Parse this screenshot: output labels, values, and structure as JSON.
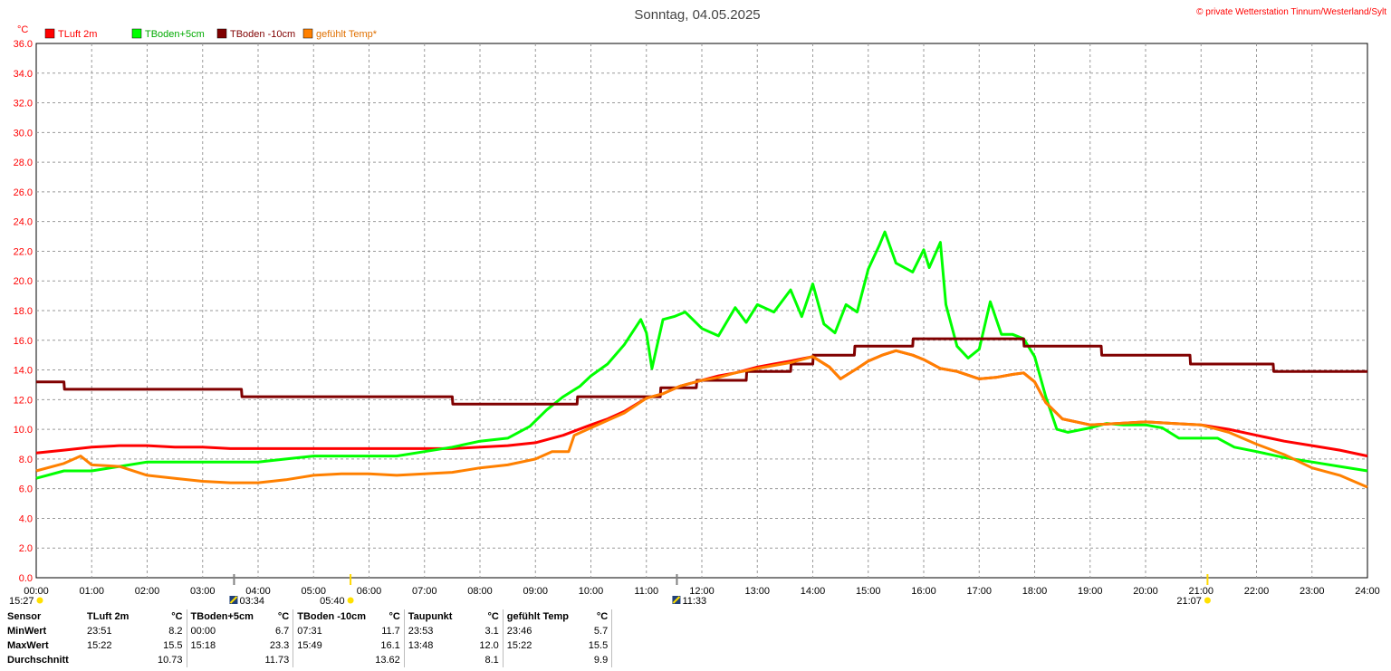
{
  "header": {
    "title": "Sonntag, 04.05.2025",
    "copyright": "© private Wetterstation Tinnum/Westerland/Sylt"
  },
  "chart_data": {
    "type": "line",
    "title": "Sonntag, 04.05.2025",
    "ylabel": "°C",
    "ylim": [
      0,
      36
    ],
    "yticks": [
      "0.0",
      "2.0",
      "4.0",
      "6.0",
      "8.0",
      "10.0",
      "12.0",
      "14.0",
      "16.0",
      "18.0",
      "20.0",
      "22.0",
      "24.0",
      "26.0",
      "28.0",
      "30.0",
      "32.0",
      "34.0",
      "36.0"
    ],
    "xlim": [
      0,
      24
    ],
    "xticks": [
      "00:00",
      "01:00",
      "02:00",
      "03:00",
      "04:00",
      "05:00",
      "06:00",
      "07:00",
      "08:00",
      "09:00",
      "10:00",
      "11:00",
      "12:00",
      "13:00",
      "14:00",
      "15:00",
      "16:00",
      "17:00",
      "18:00",
      "19:00",
      "20:00",
      "21:00",
      "22:00",
      "23:00",
      "24:00"
    ],
    "grid": true,
    "legend_position": "top-left",
    "series": [
      {
        "name": "TLuft 2m",
        "color": "#ff0000",
        "x": [
          0,
          0.5,
          1,
          1.5,
          2,
          2.5,
          3,
          3.5,
          4,
          4.5,
          5,
          5.5,
          6,
          6.5,
          7,
          7.5,
          8,
          8.5,
          9,
          9.5,
          10,
          10.3,
          10.6,
          11,
          11.3,
          11.6,
          12,
          12.3,
          12.6,
          13,
          13.3,
          13.6,
          14,
          14.3,
          14.5,
          14.8,
          15,
          15.25,
          15.5,
          15.8,
          16,
          16.3,
          16.6,
          17,
          17.3,
          17.6,
          17.8,
          18,
          18.2,
          18.5,
          19,
          19.5,
          20,
          20.5,
          21,
          21.5,
          22,
          22.5,
          23,
          23.5,
          24
        ],
        "y": [
          8.4,
          8.6,
          8.8,
          8.9,
          8.9,
          8.8,
          8.8,
          8.7,
          8.7,
          8.7,
          8.7,
          8.7,
          8.7,
          8.7,
          8.7,
          8.7,
          8.8,
          8.9,
          9.1,
          9.6,
          10.3,
          10.7,
          11.2,
          12.1,
          12.4,
          12.9,
          13.3,
          13.6,
          13.8,
          14.2,
          14.4,
          14.6,
          14.9,
          14.2,
          13.4,
          14.1,
          14.6,
          15.0,
          15.3,
          15.0,
          14.7,
          14.1,
          13.9,
          13.4,
          13.5,
          13.7,
          13.8,
          13.2,
          11.8,
          10.7,
          10.3,
          10.4,
          10.5,
          10.4,
          10.3,
          10.0,
          9.6,
          9.2,
          8.9,
          8.6,
          8.2
        ]
      },
      {
        "name": "TBoden+5cm",
        "color": "#00ff00",
        "x": [
          0,
          0.5,
          1,
          1.5,
          2,
          2.5,
          3,
          3.5,
          4,
          4.5,
          5,
          5.5,
          6,
          6.5,
          7,
          7.5,
          8,
          8.5,
          8.9,
          9.2,
          9.5,
          9.8,
          10,
          10.3,
          10.6,
          10.9,
          11,
          11.1,
          11.3,
          11.5,
          11.7,
          12,
          12.3,
          12.6,
          12.8,
          13,
          13.3,
          13.6,
          13.8,
          14,
          14.2,
          14.4,
          14.6,
          14.8,
          15,
          15.2,
          15.3,
          15.5,
          15.8,
          16,
          16.1,
          16.3,
          16.4,
          16.6,
          16.8,
          17,
          17.2,
          17.4,
          17.6,
          17.8,
          18,
          18.2,
          18.4,
          18.6,
          19,
          19.3,
          19.6,
          20,
          20.3,
          20.6,
          21,
          21.3,
          21.6,
          22,
          22.5,
          23,
          23.5,
          24
        ],
        "y": [
          6.7,
          7.2,
          7.2,
          7.5,
          7.8,
          7.8,
          7.8,
          7.8,
          7.8,
          8.0,
          8.2,
          8.2,
          8.2,
          8.2,
          8.5,
          8.8,
          9.2,
          9.4,
          10.2,
          11.3,
          12.2,
          12.9,
          13.6,
          14.4,
          15.7,
          17.4,
          16.5,
          14.1,
          17.4,
          17.6,
          17.9,
          16.8,
          16.3,
          18.2,
          17.2,
          18.4,
          17.9,
          19.4,
          17.6,
          19.8,
          17.1,
          16.5,
          18.4,
          17.9,
          20.8,
          22.4,
          23.3,
          21.2,
          20.6,
          22.1,
          20.9,
          22.6,
          18.4,
          15.6,
          14.8,
          15.4,
          18.6,
          16.4,
          16.4,
          16.1,
          14.9,
          12.2,
          10.0,
          9.8,
          10.1,
          10.4,
          10.3,
          10.3,
          10.1,
          9.4,
          9.4,
          9.4,
          8.8,
          8.5,
          8.1,
          7.8,
          7.5,
          7.2
        ]
      },
      {
        "name": "TBoden -10cm",
        "color": "#800000",
        "x": [
          0,
          0.5,
          0.51,
          3.7,
          3.71,
          7.5,
          7.51,
          9.75,
          9.76,
          11.25,
          11.26,
          11.9,
          11.91,
          12.8,
          12.81,
          13.6,
          13.61,
          14.0,
          14.01,
          14.75,
          14.76,
          15.8,
          15.81,
          17.8,
          17.81,
          19.2,
          19.21,
          20.8,
          20.81,
          22.3,
          22.31,
          24
        ],
        "y": [
          13.2,
          13.2,
          12.7,
          12.7,
          12.2,
          12.2,
          11.7,
          11.7,
          12.2,
          12.2,
          12.8,
          12.8,
          13.3,
          13.3,
          13.9,
          13.9,
          14.4,
          14.4,
          15.0,
          15.0,
          15.6,
          15.6,
          16.1,
          16.1,
          15.6,
          15.6,
          15.0,
          15.0,
          14.4,
          14.4,
          13.9,
          13.9
        ]
      },
      {
        "name": "gefühlt Temp*",
        "color": "#ff8000",
        "x": [
          0,
          0.5,
          0.8,
          1,
          1.5,
          2,
          2.5,
          3,
          3.5,
          4,
          4.5,
          5,
          5.5,
          6,
          6.5,
          7,
          7.5,
          8,
          8.5,
          9,
          9.3,
          9.6,
          9.7,
          10,
          10.3,
          10.6,
          11,
          11.3,
          11.6,
          12,
          12.3,
          12.6,
          13,
          13.3,
          13.6,
          14,
          14.3,
          14.5,
          14.8,
          15,
          15.25,
          15.5,
          15.8,
          16,
          16.3,
          16.6,
          17,
          17.3,
          17.6,
          17.8,
          18,
          18.2,
          18.5,
          19,
          19.5,
          20,
          20.5,
          21,
          21.5,
          22,
          22.5,
          23,
          23.5,
          24
        ],
        "y": [
          7.2,
          7.7,
          8.2,
          7.6,
          7.5,
          6.9,
          6.7,
          6.5,
          6.4,
          6.4,
          6.6,
          6.9,
          7.0,
          7.0,
          6.9,
          7.0,
          7.1,
          7.4,
          7.6,
          8.0,
          8.5,
          8.5,
          9.6,
          10.1,
          10.6,
          11.1,
          12.1,
          12.4,
          12.9,
          13.3,
          13.5,
          13.8,
          14.1,
          14.3,
          14.5,
          14.9,
          14.2,
          13.4,
          14.1,
          14.6,
          15.0,
          15.3,
          15.0,
          14.7,
          14.1,
          13.9,
          13.4,
          13.5,
          13.7,
          13.8,
          13.2,
          11.8,
          10.7,
          10.3,
          10.4,
          10.5,
          10.4,
          10.3,
          9.8,
          9.0,
          8.3,
          7.4,
          6.9,
          6.1
        ]
      }
    ]
  },
  "sun_markers": [
    {
      "label": "15:27",
      "kind": "sun"
    },
    {
      "label": "03:34",
      "kind": "moon"
    },
    {
      "label": "05:40",
      "kind": "sun"
    },
    {
      "label": "11:33",
      "kind": "moon"
    },
    {
      "label": "21:07",
      "kind": "sun"
    }
  ],
  "stats": {
    "headers": [
      "Sensor",
      "TLuft 2m",
      "°C",
      "TBoden+5cm",
      "°C",
      "TBoden -10cm",
      "°C",
      "Taupunkt",
      "°C",
      "gefühlt Temp",
      "°C"
    ],
    "rows": [
      {
        "label": "MinWert",
        "cells": [
          "23:51",
          "8.2",
          "00:00",
          "6.7",
          "07:31",
          "11.7",
          "23:53",
          "3.1",
          "23:46",
          "5.7"
        ]
      },
      {
        "label": "MaxWert",
        "cells": [
          "15:22",
          "15.5",
          "15:18",
          "23.3",
          "15:49",
          "16.1",
          "13:48",
          "12.0",
          "15:22",
          "15.5"
        ]
      },
      {
        "label": "Durchschnitt",
        "cells": [
          "",
          "10.73",
          "",
          "11.73",
          "",
          "13.62",
          "",
          "8.1",
          "",
          "9.9"
        ]
      }
    ]
  }
}
